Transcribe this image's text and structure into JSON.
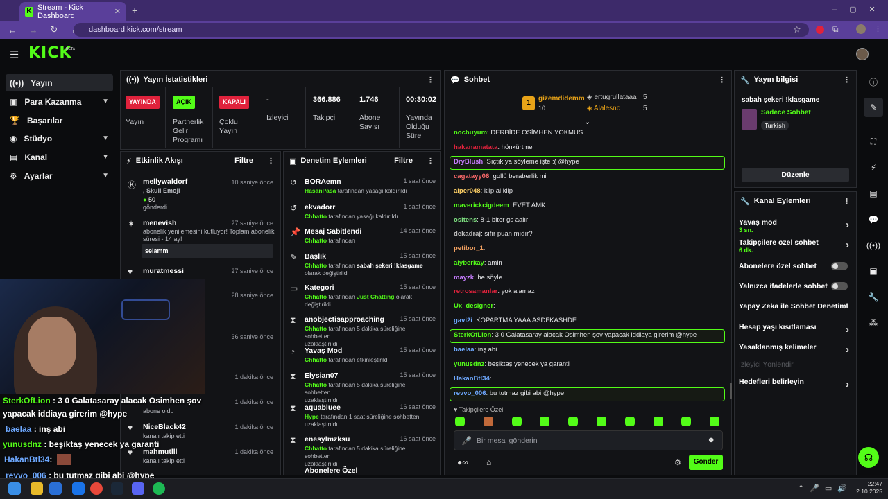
{
  "browser": {
    "tab_title": "Stream - Kick Dashboard",
    "url": "dashboard.kick.com/stream"
  },
  "app": {
    "logo": "KICK",
    "beta": "BETA"
  },
  "sidebar": {
    "items": [
      {
        "label": "Yayın",
        "icon": "broadcast-icon"
      },
      {
        "label": "Para Kazanma",
        "icon": "money-icon"
      },
      {
        "label": "Başarılar",
        "icon": "trophy-icon"
      },
      {
        "label": "Stüdyo",
        "icon": "studio-icon"
      },
      {
        "label": "Kanal",
        "icon": "channel-icon"
      },
      {
        "label": "Ayarlar",
        "icon": "gear-icon"
      }
    ]
  },
  "stats": {
    "title": "Yayın İstatistikleri",
    "cols": [
      {
        "badge": "YAYINDA",
        "label": "Yayın",
        "color": "#e0223c"
      },
      {
        "badge": "AÇIK",
        "label": "Partnerlik Gelir Programı",
        "color": "#53fc18"
      },
      {
        "badge": "KAPALI",
        "label": "Çoklu Yayın",
        "color": "#e0223c"
      },
      {
        "value": "-",
        "label": "İzleyici"
      },
      {
        "value": "366.886",
        "label": "Takipçi"
      },
      {
        "value": "1.746",
        "label": "Abone Sayısı"
      },
      {
        "value": "00:30:02",
        "label": "Yayında Olduğu Süre"
      }
    ]
  },
  "activity": {
    "title": "Etkinlik Akışı",
    "filter": "Filtre",
    "events": [
      {
        "name": "mellywaldorf",
        "time": "10 saniye önce",
        "l1": ", Skull Emoji",
        "l2": "50",
        "l3": "gönderdi"
      },
      {
        "name": "menevish",
        "time": "27 saniye önce",
        "l1": "abonelik yenilemesini kutluyor! Toplam abonelik",
        "l2": "süresi - 14 ay!",
        "msg": "selamm"
      },
      {
        "name": "muratmessi",
        "time": "27 saniye önce"
      },
      {
        "time": "28 saniye önce"
      },
      {
        "time": "36 saniye önce"
      },
      {
        "time": "1 dakika önce"
      },
      {
        "time": "1 dakika önce",
        "l1": "abone oldu"
      },
      {
        "name": "NiceBlack42",
        "time": "1 dakika önce",
        "l1": "kanalı takip etti"
      },
      {
        "name": "mahmutlll",
        "time": "1 dakika önce",
        "l1": "kanalı takip etti"
      }
    ]
  },
  "moderation": {
    "title": "Denetim Eylemleri",
    "filter": "Filtre",
    "actions": [
      {
        "name": "BORAemn",
        "time": "1 saat önce",
        "actor": "HasanPasa",
        "text": "tarafından yasağı kaldırıldı"
      },
      {
        "name": "ekvadorr",
        "time": "1 saat önce",
        "actor": "Chhatto",
        "text": "tarafından yasağı kaldırıldı"
      },
      {
        "name": "Mesaj Sabitlendi",
        "time": "14 saat önce",
        "actor": "Chhatto",
        "text": "tarafından"
      },
      {
        "name": "Başlık",
        "time": "15 saat önce",
        "actor": "Chhatto",
        "text": "tarafından",
        "bold": "sabah şekeri !klasgame",
        "text2": "olarak değiştirildi"
      },
      {
        "name": "Kategori",
        "time": "15 saat önce",
        "actor": "Chhatto",
        "text": "tarafından",
        "bold": "Just Chatting",
        "text2b": "olarak",
        "text2": "değiştirildi"
      },
      {
        "name": "anobjectisapproaching",
        "time": "15 saat önce",
        "actor": "Chhatto",
        "text": "tarafından 5 dakika süreliğine sohbetten",
        "text2": "uzaklaştırıldı"
      },
      {
        "name": "Yavaş Mod",
        "time": "15 saat önce",
        "actor": "Chhatto",
        "text": "tarafından etkinleştirildi"
      },
      {
        "name": "Elysian07",
        "time": "15 saat önce",
        "actor": "Chhatto",
        "text": "tarafından 5 dakika süreliğine sohbetten",
        "text2": "uzaklaştırıldı"
      },
      {
        "name": "aquabluee",
        "time": "16 saat önce",
        "actor": "Hype",
        "text": "tarafından 1 saat süreliğine sohbetten",
        "text2": "uzaklaştırıldı"
      },
      {
        "name": "enesylmzksu",
        "time": "16 saat önce",
        "actor": "Chhatto",
        "text": "tarafından 5 dakika süreliğine sohbetten",
        "text2": "uzaklaştırıldı"
      },
      {
        "name": "Abonelere Özel"
      }
    ]
  },
  "chat": {
    "title": "Sohbet",
    "leader": {
      "name": "gizemdidemm",
      "count": "10",
      "rank": "1"
    },
    "top2": {
      "name": "ertugrullataaa",
      "count": "5"
    },
    "top3": {
      "name": "Alalesnc",
      "count": "5"
    },
    "messages": [
      {
        "user": "nochuyum",
        "color": "#53fc18",
        "text": "DERBİDE OSİMHEN YOKMUS"
      },
      {
        "user": "hakanamatata",
        "color": "#e0223c",
        "text": "hönkürtme"
      },
      {
        "user": "DryBlush",
        "color": "#c77dff",
        "text": "Sıçtık ya söyleme işte :( @hype",
        "hl": true
      },
      {
        "user": "cagatayy06",
        "color": "#ff6b6b",
        "text": "gollü beraberlik mi"
      },
      {
        "user": "alper048",
        "color": "#ffd166",
        "text": "klip al klip"
      },
      {
        "user": "maverickcigdeem",
        "color": "#53fc18",
        "text": "EVET AMK"
      },
      {
        "user": "ositens",
        "color": "#7ee081",
        "text": "8-1 biter gs aalır"
      },
      {
        "user": "dekadraj",
        "color": "#bbbbbb",
        "text": "sıfır puan mıdır?"
      },
      {
        "user": "petibor_1",
        "color": "#f4a261",
        "text": ""
      },
      {
        "user": "alyberkay",
        "color": "#53fc18",
        "text": "amin"
      },
      {
        "user": "mayzk",
        "color": "#c77dff",
        "text": "he söyle"
      },
      {
        "user": "retrosamanlar",
        "color": "#e0223c",
        "text": "yok alamaz"
      },
      {
        "user": "Ux_designer",
        "color": "#53fc18",
        "text": ""
      },
      {
        "user": "gavi2i",
        "color": "#6ea8fe",
        "text": "KOPARTMA YAAA ASDFKASHDF"
      },
      {
        "user": "SterkOfLion",
        "color": "#53fc18",
        "text": "3 0 Galatasaray alacak Osimhen şov yapacak iddiaya girerim @hype",
        "hl": true
      },
      {
        "user": "baelaa",
        "color": "#6ea8fe",
        "text": "inş abi"
      },
      {
        "user": "yunusdnz",
        "color": "#53fc18",
        "text": "beşiktaş yenecek ya garanti"
      },
      {
        "user": "HakanBtl34",
        "color": "#6ea8fe",
        "text": ""
      },
      {
        "user": "revvo_006",
        "color": "#6ea8fe",
        "text": "bu tutmaz gibi abi @hype",
        "hl": true
      }
    ],
    "follower_only_label": "Takipçilere Özel",
    "input_placeholder": "Bir mesaj gönderin",
    "send": "Gönder"
  },
  "stream_info": {
    "title": "Yayın bilgisi",
    "stream_title": "sabah şekeri !klasgame",
    "category": "Sadece Sohbet",
    "language": "Turkish",
    "edit": "Düzenle"
  },
  "channel_actions": {
    "title": "Kanal Eylemleri",
    "items": [
      {
        "label": "Yavaş mod",
        "sub": "3 sn.",
        "kind": "chev"
      },
      {
        "label": "Takipçilere özel sohbet",
        "sub": "6 dk.",
        "kind": "chev"
      },
      {
        "label": "Abonelere özel sohbet",
        "kind": "toggle"
      },
      {
        "label": "Yalnızca ifadelerle sohbet",
        "kind": "toggle"
      },
      {
        "label": "Yapay Zeka ile Sohbet Denetimi",
        "kind": "ext"
      },
      {
        "label": "Hesap yaşı kısıtlaması",
        "kind": "chev"
      },
      {
        "label": "Yasaklanmış kelimeler",
        "kind": "chev"
      },
      {
        "label": "İzleyici Yönlendir",
        "kind": "disabled"
      },
      {
        "label": "Hedefleri belirleyin",
        "kind": "chev"
      }
    ]
  },
  "overlay_chat": [
    {
      "user": "SterkOfLion",
      "text": ": 3 0 Galatasaray alacak Osimhen şov",
      "color": "#53fc18"
    },
    {
      "text": "yapacak iddiaya girerim @hype"
    },
    {
      "user": "baelaa",
      "text": ": inş abi",
      "color": "#6ea8fe"
    },
    {
      "user": "yunusdnz",
      "text": ": beşiktaş yenecek ya garanti",
      "color": "#53fc18"
    },
    {
      "user": "HakanBtl34",
      "text": ":",
      "color": "#6ea8fe"
    },
    {
      "user": "revvo_006",
      "text": ": bu tutmaz gibi abi @hype",
      "color": "#6ea8fe"
    }
  ],
  "taskbar": {
    "time": "22:47",
    "date": "2.10.2025"
  }
}
